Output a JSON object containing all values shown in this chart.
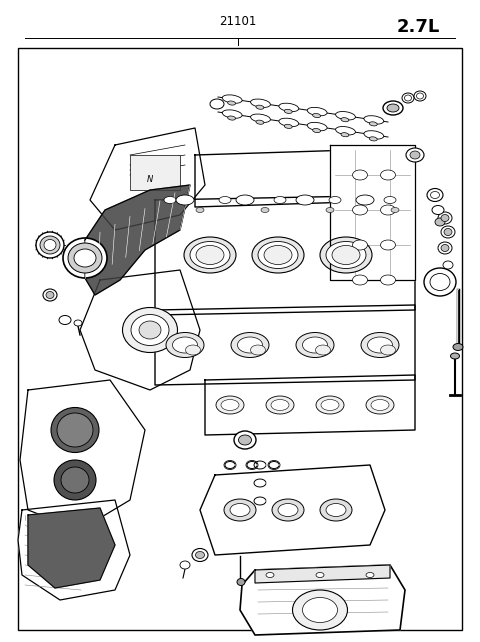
{
  "title": "2.7L",
  "part_number": "21101",
  "bg_color": "#ffffff",
  "border_color": "#000000",
  "line_color": "#000000",
  "title_fontsize": 13,
  "label_fontsize": 8.5,
  "fig_width": 4.8,
  "fig_height": 6.42,
  "dpi": 100
}
